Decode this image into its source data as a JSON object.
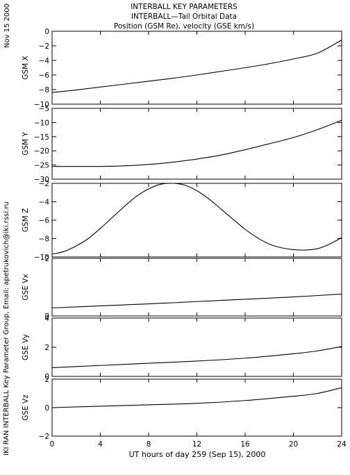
{
  "header": {
    "title_lines": [
      "INTERBALL KEY PARAMETERS",
      "INTERBALL—Tail Orbital Data",
      "Position (GSM Re), velocity (GSE km/s)"
    ],
    "date_label": "Nov 15 2000",
    "credit_label": "IKI RAN INTERBALL Key Parameter Group, Email: apetrukovich@iki.rssi.ru"
  },
  "x_axis": {
    "label": "UT hours of day 259 (Sep 15), 2000",
    "range": [
      0,
      24
    ],
    "ticks": [
      0,
      4,
      8,
      12,
      16,
      20,
      24
    ]
  },
  "chart_data": [
    {
      "type": "line",
      "ylabel": "GSM X",
      "ylim": [
        -10,
        0
      ],
      "yticks": [
        0,
        -2,
        -4,
        -6,
        -8,
        -10
      ],
      "x": [
        0,
        2,
        4,
        6,
        8,
        10,
        12,
        14,
        16,
        18,
        20,
        22,
        24
      ],
      "y": [
        -8.4,
        -8.05,
        -7.65,
        -7.25,
        -6.85,
        -6.45,
        -6.0,
        -5.5,
        -5.0,
        -4.45,
        -3.8,
        -3.0,
        -1.2
      ]
    },
    {
      "type": "line",
      "ylabel": "GSM Y",
      "ylim": [
        -30,
        -5
      ],
      "yticks": [
        -5,
        -10,
        -15,
        -20,
        -25,
        -30
      ],
      "x": [
        0,
        2,
        4,
        6,
        8,
        10,
        12,
        14,
        16,
        18,
        20,
        22,
        24
      ],
      "y": [
        -25.5,
        -25.5,
        -25.5,
        -25.3,
        -24.8,
        -24.0,
        -22.9,
        -21.5,
        -19.6,
        -17.5,
        -15.3,
        -12.5,
        -9.2
      ]
    },
    {
      "type": "line",
      "ylabel": "GSM Z",
      "ylim": [
        -10,
        -2
      ],
      "yticks": [
        -2,
        -4,
        -6,
        -8,
        -10
      ],
      "x": [
        0,
        1,
        2,
        3,
        4,
        5,
        6,
        7,
        8,
        9,
        10,
        11,
        12,
        13,
        14,
        15,
        16,
        17,
        18,
        19,
        20,
        21,
        22,
        23,
        24
      ],
      "y": [
        -9.7,
        -9.4,
        -8.8,
        -8.0,
        -6.9,
        -5.7,
        -4.5,
        -3.4,
        -2.6,
        -2.1,
        -2.0,
        -2.2,
        -2.8,
        -3.7,
        -4.8,
        -5.9,
        -7.0,
        -7.9,
        -8.6,
        -9.0,
        -9.2,
        -9.25,
        -9.1,
        -8.6,
        -7.9
      ]
    },
    {
      "type": "line",
      "ylabel": "GSE Vx",
      "ylim": [
        0,
        2
      ],
      "yticks": [
        0,
        2
      ],
      "x": [
        0,
        4,
        8,
        12,
        16,
        20,
        24
      ],
      "y": [
        0.28,
        0.35,
        0.42,
        0.5,
        0.58,
        0.66,
        0.76
      ]
    },
    {
      "type": "line",
      "ylabel": "GSE Vy",
      "ylim": [
        0,
        4
      ],
      "yticks": [
        0,
        2,
        4
      ],
      "x": [
        0,
        4,
        8,
        12,
        16,
        20,
        22,
        24
      ],
      "y": [
        0.6,
        0.75,
        0.9,
        1.05,
        1.25,
        1.55,
        1.75,
        2.05
      ]
    },
    {
      "type": "line",
      "ylabel": "GSE Vz",
      "ylim": [
        -2,
        2
      ],
      "yticks": [
        2,
        0,
        -2
      ],
      "x": [
        0,
        4,
        8,
        12,
        16,
        20,
        22,
        24
      ],
      "y": [
        0.0,
        0.1,
        0.2,
        0.3,
        0.5,
        0.8,
        1.0,
        1.4
      ]
    }
  ]
}
